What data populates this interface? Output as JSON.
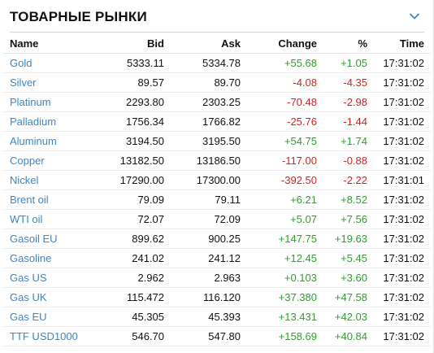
{
  "header": {
    "title": "ТОВАРНЫЕ РЫНКИ",
    "toggle_icon": "chevron-down-icon"
  },
  "columns": {
    "name": "Name",
    "bid": "Bid",
    "ask": "Ask",
    "change": "Change",
    "percent": "%",
    "time": "Time"
  },
  "colors": {
    "link": "#3a86c8",
    "positive": "#2ca02c",
    "negative": "#d32020"
  },
  "rows": [
    {
      "name": "Gold",
      "bid": "5333.11",
      "ask": "5334.78",
      "change": "+55.68",
      "percent": "+1.05",
      "time": "17:31:02"
    },
    {
      "name": "Silver",
      "bid": "89.57",
      "ask": "89.70",
      "change": "-4.08",
      "percent": "-4.35",
      "time": "17:31:02"
    },
    {
      "name": "Platinum",
      "bid": "2293.80",
      "ask": "2303.25",
      "change": "-70.48",
      "percent": "-2.98",
      "time": "17:31:02"
    },
    {
      "name": "Palladium",
      "bid": "1756.34",
      "ask": "1766.82",
      "change": "-25.76",
      "percent": "-1.44",
      "time": "17:31:02"
    },
    {
      "name": "Aluminum",
      "bid": "3194.50",
      "ask": "3195.50",
      "change": "+54.75",
      "percent": "+1.74",
      "time": "17:31:02"
    },
    {
      "name": "Copper",
      "bid": "13182.50",
      "ask": "13186.50",
      "change": "-117.00",
      "percent": "-0.88",
      "time": "17:31:02"
    },
    {
      "name": "Nickel",
      "bid": "17290.00",
      "ask": "17300.00",
      "change": "-392.50",
      "percent": "-2.22",
      "time": "17:31:01"
    },
    {
      "name": "Brent oil",
      "bid": "79.09",
      "ask": "79.11",
      "change": "+6.21",
      "percent": "+8.52",
      "time": "17:31:02"
    },
    {
      "name": "WTI oil",
      "bid": "72.07",
      "ask": "72.09",
      "change": "+5.07",
      "percent": "+7.56",
      "time": "17:31:02"
    },
    {
      "name": "Gasoil EU",
      "bid": "899.62",
      "ask": "900.25",
      "change": "+147.75",
      "percent": "+19.63",
      "time": "17:31:02"
    },
    {
      "name": "Gasoline",
      "bid": "241.02",
      "ask": "241.12",
      "change": "+12.45",
      "percent": "+5.45",
      "time": "17:31:02"
    },
    {
      "name": "Gas US",
      "bid": "2.962",
      "ask": "2.963",
      "change": "+0.103",
      "percent": "+3.60",
      "time": "17:31:02"
    },
    {
      "name": "Gas UK",
      "bid": "115.472",
      "ask": "116.120",
      "change": "+37.380",
      "percent": "+47.58",
      "time": "17:31:02"
    },
    {
      "name": "Gas EU",
      "bid": "45.305",
      "ask": "45.393",
      "change": "+13.431",
      "percent": "+42.03",
      "time": "17:31:02"
    },
    {
      "name": "TTF USD1000",
      "bid": "546.70",
      "ask": "547.80",
      "change": "+158.69",
      "percent": "+40.84",
      "time": "17:31:02"
    }
  ]
}
